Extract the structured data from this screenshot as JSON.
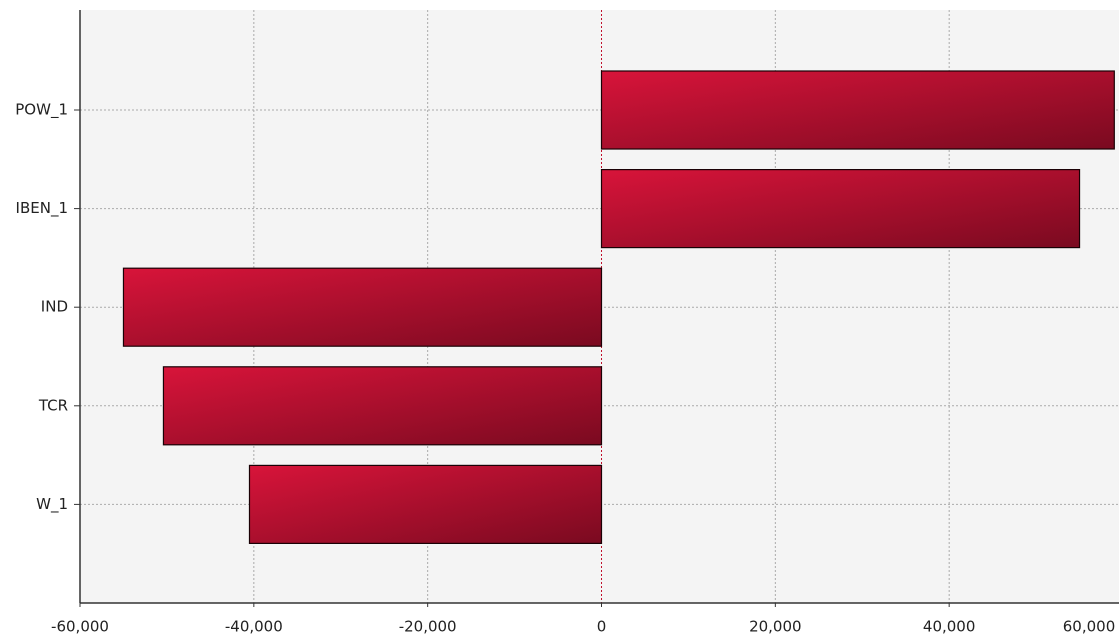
{
  "chart_data": {
    "type": "hbar",
    "categories": [
      "POW_1",
      "IBEN_1",
      "IND",
      "TCR",
      "W_1"
    ],
    "values": [
      59000,
      55000,
      -55000,
      -50400,
      -40500
    ],
    "color": "#b5102c",
    "xlim": [
      -60000,
      60000
    ],
    "xticks": [
      {
        "value": -60000,
        "label": "-60,000"
      },
      {
        "value": -40000,
        "label": "-40,000"
      },
      {
        "value": -20000,
        "label": "-20,000"
      },
      0,
      {
        "value": 20000,
        "label": "20,000"
      },
      {
        "value": 40000,
        "label": "40,000"
      },
      {
        "value": 60000,
        "label": "60,000"
      }
    ],
    "grid": true
  }
}
